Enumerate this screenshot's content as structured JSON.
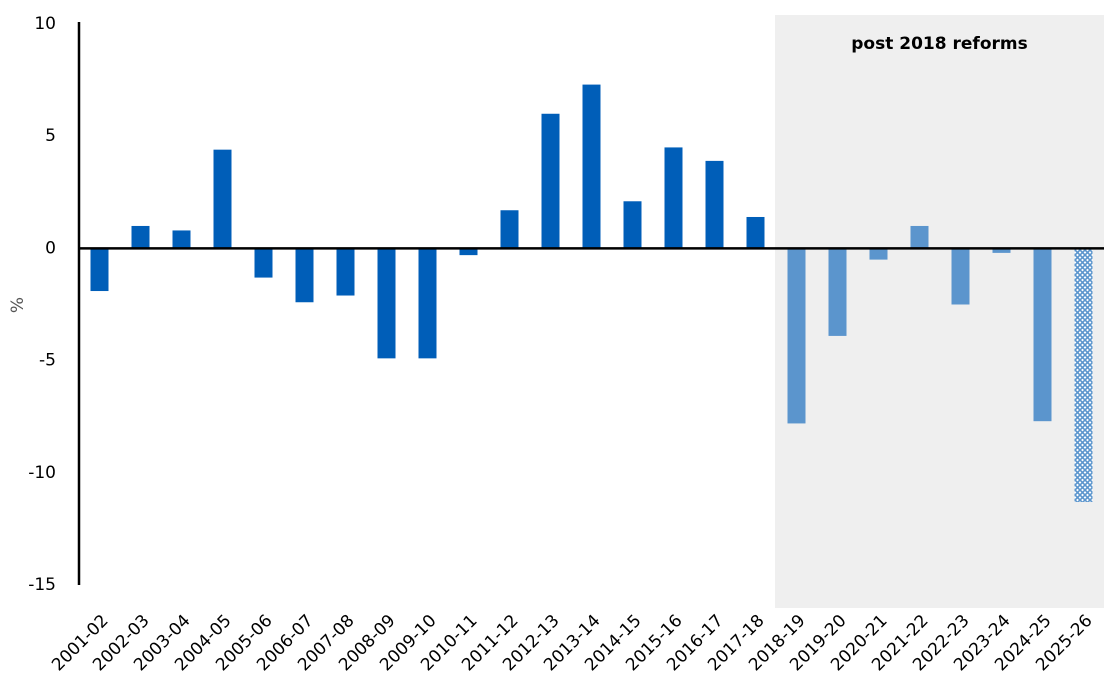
{
  "chart_data": {
    "type": "bar",
    "y_axis_label": "%",
    "categories": [
      "2001-02",
      "2002-03",
      "2003-04",
      "2004-05",
      "2005-06",
      "2006-07",
      "2007-08",
      "2008-09",
      "2009-10",
      "2010-11",
      "2011-12",
      "2012-13",
      "2013-14",
      "2014-15",
      "2015-16",
      "2016-17",
      "2017-18",
      "2018-19",
      "2019-20",
      "2020-21",
      "2021-22",
      "2022-23",
      "2023-24",
      "2024-25",
      "2025-26"
    ],
    "values": [
      -1.9,
      1.0,
      0.8,
      4.4,
      -1.3,
      -2.4,
      -2.1,
      -4.9,
      -4.9,
      -0.3,
      1.7,
      6.0,
      7.3,
      2.1,
      4.5,
      3.9,
      1.4,
      -7.8,
      -3.9,
      -0.5,
      1.0,
      -2.5,
      -0.2,
      -7.7,
      -11.3
    ],
    "colors": [
      "#005eb8",
      "#005eb8",
      "#005eb8",
      "#005eb8",
      "#005eb8",
      "#005eb8",
      "#005eb8",
      "#005eb8",
      "#005eb8",
      "#005eb8",
      "#005eb8",
      "#005eb8",
      "#005eb8",
      "#005eb8",
      "#005eb8",
      "#005eb8",
      "#005eb8",
      "#5b95cd",
      "#5b95cd",
      "#5b95cd",
      "#5b95cd",
      "#5b95cd",
      "#5b95cd",
      "#5b95cd",
      "#5b95cd"
    ],
    "hatched_categories": [
      "2025-26"
    ],
    "shaded_region": {
      "label": "post 2018 reforms",
      "start": "2018-19",
      "color": "#efefef"
    },
    "ylim": [
      -15,
      10
    ],
    "yticks": [
      -15,
      -10,
      -5,
      0,
      5,
      10
    ],
    "grid": false
  }
}
